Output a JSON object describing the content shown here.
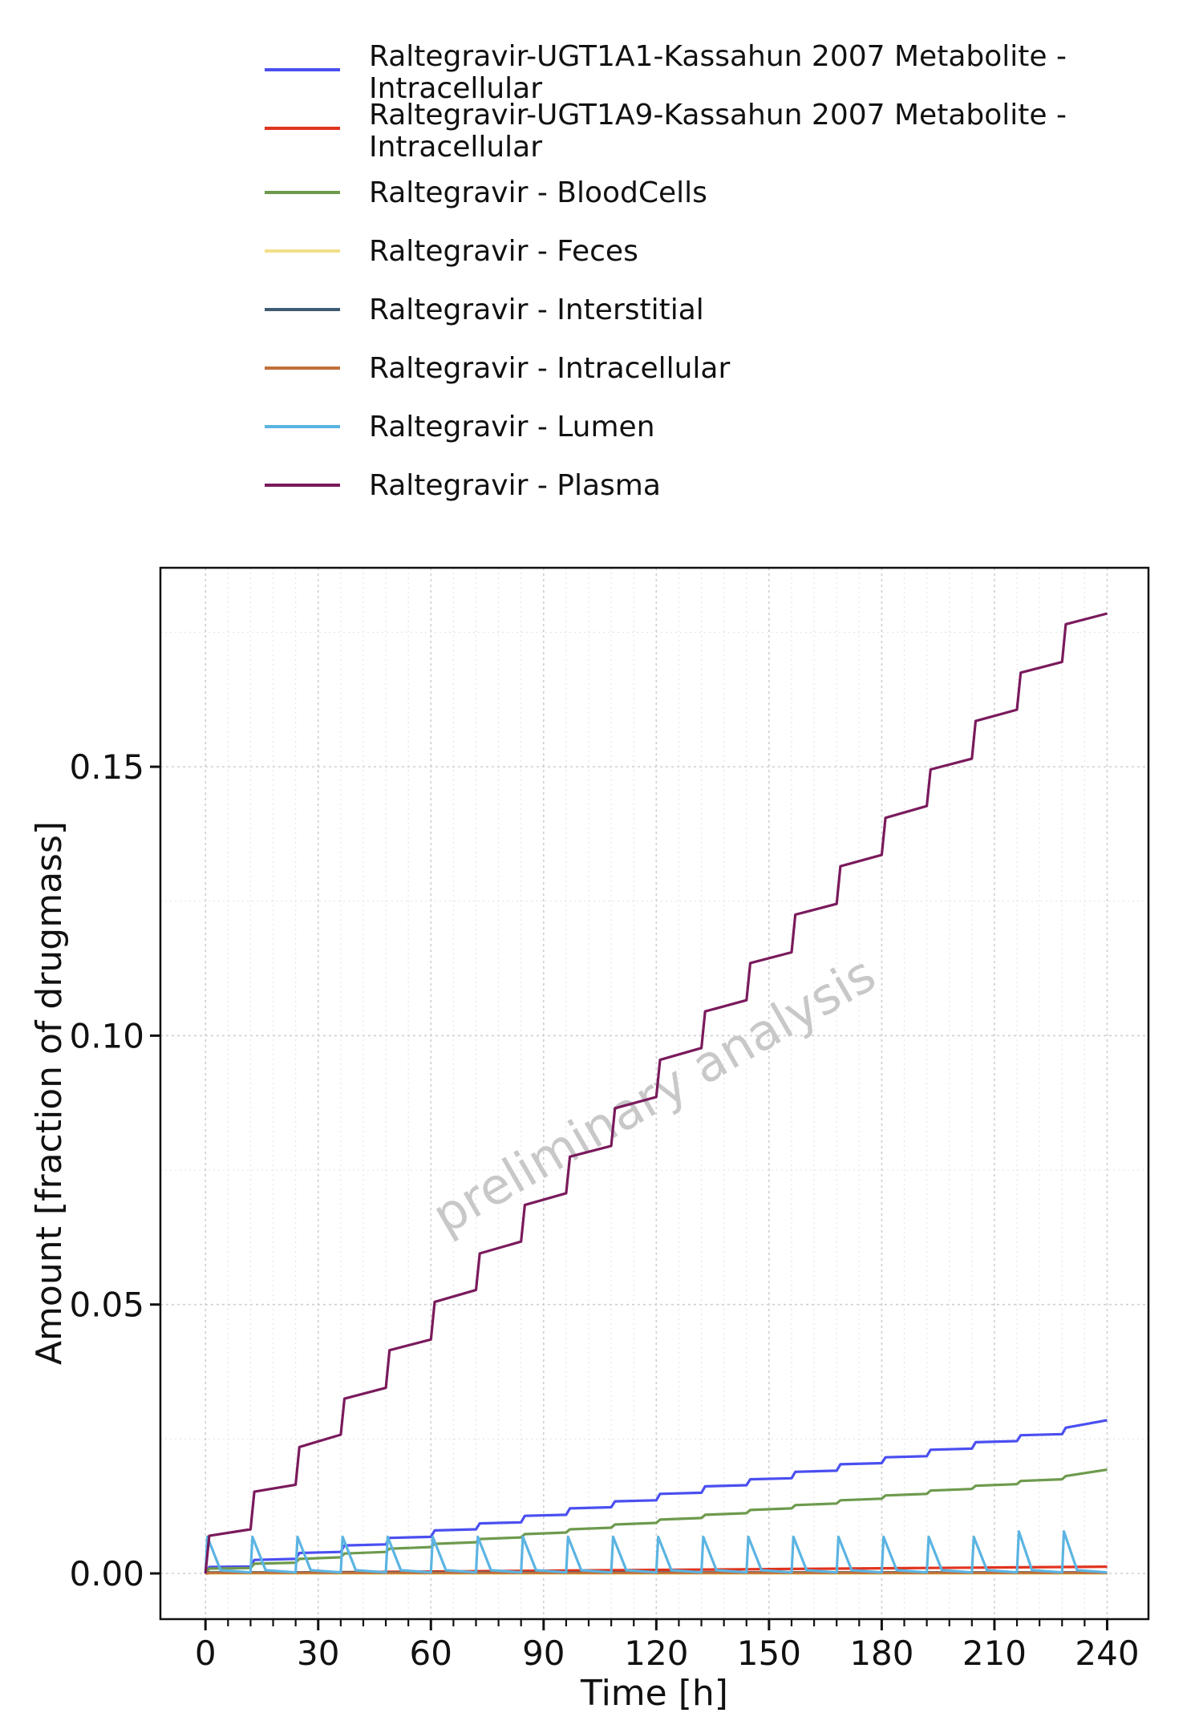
{
  "chart_data": {
    "type": "line",
    "title": "",
    "xlabel": "Time [h]",
    "ylabel": "Amount [fraction of drugmass]",
    "xlim": [
      -12,
      251
    ],
    "ylim": [
      -0.0085,
      0.187
    ],
    "x_ticks": [
      0,
      30,
      60,
      90,
      120,
      150,
      180,
      210,
      240
    ],
    "x_tick_labels": [
      "0",
      "30",
      "60",
      "90",
      "120",
      "150",
      "180",
      "210",
      "240"
    ],
    "y_ticks": [
      0.0,
      0.05,
      0.1,
      0.15
    ],
    "y_tick_labels": [
      "0.00",
      "0.05",
      "0.10",
      "0.15"
    ],
    "grid": true,
    "legend_position": "top",
    "watermark": "preliminary analysis",
    "dosing_interval_h": 12,
    "series": [
      {
        "name": "Raltegravir-UGT1A1-Kassahun 2007 Metabolite - Intracellular",
        "color": "#4a4ff0",
        "x": [
          0,
          1,
          12,
          13,
          24,
          25,
          36,
          37,
          48,
          49,
          60,
          61,
          72,
          73,
          84,
          85,
          96,
          97,
          108,
          109,
          120,
          121,
          132,
          133,
          144,
          145,
          156,
          157,
          168,
          169,
          180,
          181,
          192,
          193,
          204,
          205,
          216,
          217,
          228,
          229,
          240
        ],
        "y": [
          0,
          0.0012,
          0.0013,
          0.0025,
          0.0027,
          0.0038,
          0.004,
          0.0052,
          0.0054,
          0.0066,
          0.0068,
          0.008,
          0.0082,
          0.0093,
          0.0095,
          0.0107,
          0.0109,
          0.0121,
          0.0123,
          0.0134,
          0.0136,
          0.0148,
          0.015,
          0.0162,
          0.0164,
          0.0175,
          0.0177,
          0.0189,
          0.0191,
          0.0203,
          0.0205,
          0.0216,
          0.0218,
          0.023,
          0.0232,
          0.0244,
          0.0246,
          0.0257,
          0.0259,
          0.0271,
          0.0285
        ]
      },
      {
        "name": "Raltegravir-UGT1A9-Kassahun 2007 Metabolite - Intracellular",
        "color": "#e0341f",
        "x": [
          0,
          12,
          24,
          36,
          48,
          60,
          72,
          84,
          96,
          108,
          120,
          132,
          144,
          156,
          168,
          180,
          192,
          204,
          216,
          228,
          240
        ],
        "y": [
          0,
          8e-05,
          0.00015,
          0.00022,
          0.0003,
          0.00036,
          0.00042,
          0.00048,
          0.00054,
          0.0006,
          0.00066,
          0.00072,
          0.00078,
          0.00084,
          0.0009,
          0.00096,
          0.00102,
          0.00108,
          0.00114,
          0.0012,
          0.00125
        ]
      },
      {
        "name": "Raltegravir - BloodCells",
        "color": "#6d9a4d",
        "x": [
          0,
          1,
          12,
          13,
          24,
          25,
          36,
          37,
          48,
          49,
          60,
          61,
          72,
          73,
          84,
          85,
          96,
          97,
          108,
          109,
          120,
          121,
          132,
          133,
          144,
          145,
          156,
          157,
          168,
          169,
          180,
          181,
          192,
          193,
          204,
          205,
          216,
          217,
          228,
          229,
          240
        ],
        "y": [
          0,
          0.0009,
          0.001,
          0.0018,
          0.002,
          0.0027,
          0.003,
          0.0037,
          0.004,
          0.0046,
          0.0049,
          0.0055,
          0.0058,
          0.0064,
          0.0067,
          0.0073,
          0.0076,
          0.0082,
          0.0085,
          0.0091,
          0.0094,
          0.01,
          0.0103,
          0.0109,
          0.0112,
          0.0118,
          0.0121,
          0.0127,
          0.013,
          0.0136,
          0.0139,
          0.0145,
          0.0148,
          0.0154,
          0.0157,
          0.0163,
          0.0166,
          0.0172,
          0.0175,
          0.0181,
          0.0193
        ]
      },
      {
        "name": "Raltegravir - Feces",
        "color": "#f2e08a",
        "x": [
          0,
          240
        ],
        "y": [
          0,
          0
        ]
      },
      {
        "name": "Raltegravir - Interstitial",
        "color": "#3f5b72",
        "x": [
          0,
          1,
          240
        ],
        "y": [
          0,
          0.0002,
          0.0002
        ]
      },
      {
        "name": "Raltegravir - Intracellular",
        "color": "#c0703a",
        "x": [
          0,
          1,
          240
        ],
        "y": [
          0,
          0.0001,
          0.0001
        ]
      },
      {
        "name": "Raltegravir - Lumen",
        "color": "#5bb4e2",
        "x": [
          0,
          0.5,
          4,
          12,
          12.5,
          16,
          24,
          24.5,
          28,
          36,
          36.5,
          40,
          48,
          48.5,
          52,
          60,
          60.5,
          64,
          72,
          72.5,
          76,
          84,
          84.5,
          88,
          96,
          96.5,
          100,
          108,
          108.5,
          112,
          120,
          120.5,
          124,
          132,
          132.5,
          136,
          144,
          144.5,
          148,
          156,
          156.5,
          160,
          168,
          168.5,
          172,
          180,
          180.5,
          184,
          192,
          192.5,
          196,
          204,
          204.5,
          208,
          216,
          216.5,
          220,
          228,
          228.5,
          232,
          240
        ],
        "y": [
          0,
          0.0068,
          0.0006,
          0.0002,
          0.0068,
          0.0006,
          0.0002,
          0.0068,
          0.0006,
          0.0002,
          0.0068,
          0.0006,
          0.0002,
          0.0068,
          0.0006,
          0.0002,
          0.0068,
          0.0006,
          0.0002,
          0.0068,
          0.0006,
          0.0002,
          0.0068,
          0.0006,
          0.0002,
          0.0068,
          0.0006,
          0.0002,
          0.0068,
          0.0006,
          0.0002,
          0.0068,
          0.0006,
          0.0002,
          0.0068,
          0.0006,
          0.0002,
          0.0068,
          0.0006,
          0.0002,
          0.0068,
          0.0006,
          0.0002,
          0.0068,
          0.0006,
          0.0002,
          0.0068,
          0.0006,
          0.0002,
          0.0068,
          0.0006,
          0.0002,
          0.0068,
          0.0006,
          0.0002,
          0.0078,
          0.0006,
          0.0002,
          0.0078,
          0.0006,
          0.0002
        ]
      },
      {
        "name": "Raltegravir - Plasma",
        "color": "#7a1a5c",
        "x": [
          0,
          1,
          12,
          13,
          24,
          25,
          36,
          37,
          48,
          49,
          60,
          61,
          72,
          73,
          84,
          85,
          96,
          97,
          108,
          109,
          120,
          121,
          132,
          133,
          144,
          145,
          156,
          157,
          168,
          169,
          180,
          181,
          192,
          193,
          204,
          205,
          216,
          217,
          228,
          229,
          240
        ],
        "y": [
          0,
          0.007,
          0.0082,
          0.0152,
          0.0165,
          0.0235,
          0.0258,
          0.0325,
          0.0345,
          0.0415,
          0.0435,
          0.0505,
          0.0527,
          0.0595,
          0.0617,
          0.0685,
          0.0707,
          0.0775,
          0.0795,
          0.0865,
          0.0886,
          0.0955,
          0.0977,
          0.1045,
          0.1066,
          0.1135,
          0.1155,
          0.1225,
          0.1245,
          0.1315,
          0.1336,
          0.1405,
          0.1427,
          0.1495,
          0.1515,
          0.1585,
          0.1606,
          0.1675,
          0.1695,
          0.1765,
          0.1785
        ]
      }
    ]
  }
}
